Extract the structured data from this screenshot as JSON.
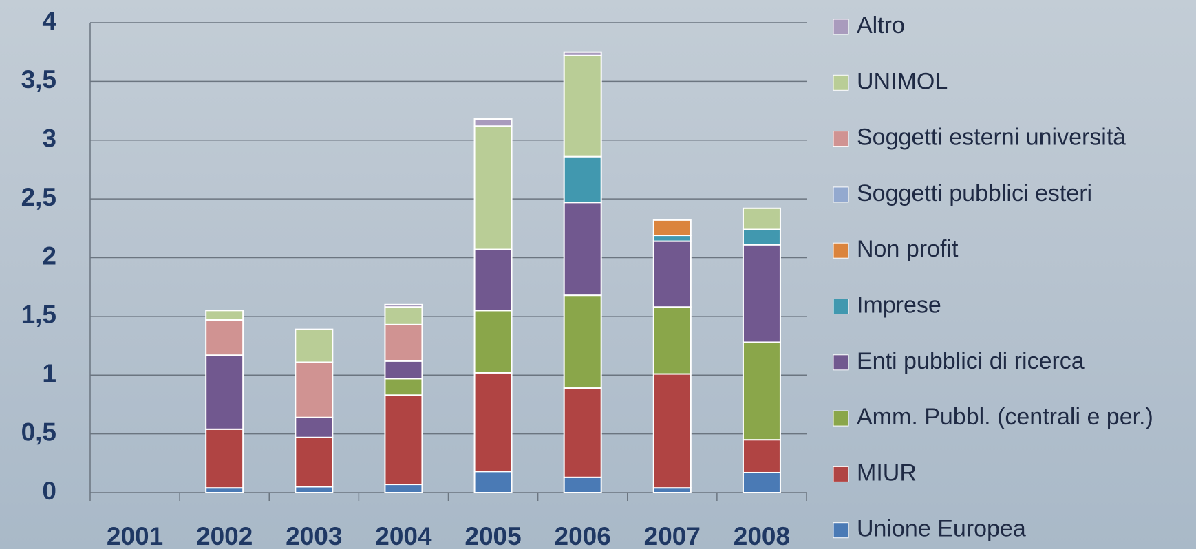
{
  "chart_data": {
    "type": "stacked_bar",
    "categories": [
      "2001",
      "2002",
      "2003",
      "2004",
      "2005",
      "2006",
      "2007",
      "2008"
    ],
    "series": [
      {
        "name": "Unione Europea",
        "color": "#4a7ab5",
        "values": [
          0,
          0.04,
          0.05,
          0.07,
          0.18,
          0.13,
          0.04,
          0.17
        ]
      },
      {
        "name": "MIUR",
        "color": "#b04443",
        "values": [
          0,
          0.5,
          0.42,
          0.76,
          0.84,
          0.76,
          0.97,
          0.28
        ]
      },
      {
        "name": "Amm. Pubbl. (centrali e per.)",
        "color": "#8aa64a",
        "values": [
          0,
          0,
          0,
          0.14,
          0.53,
          0.79,
          0.57,
          0.83
        ]
      },
      {
        "name": "Enti pubblici di ricerca",
        "color": "#71588f",
        "values": [
          0,
          0.63,
          0.17,
          0.15,
          0.52,
          0.79,
          0.56,
          0.83
        ]
      },
      {
        "name": "Imprese",
        "color": "#4198af",
        "values": [
          0,
          0,
          0,
          0,
          0,
          0.39,
          0.05,
          0.13
        ]
      },
      {
        "name": "Non profit",
        "color": "#db843d",
        "values": [
          0,
          0,
          0,
          0,
          0,
          0,
          0.13,
          0
        ]
      },
      {
        "name": "Soggetti pubblici esteri",
        "color": "#93a9cf",
        "values": [
          0,
          0,
          0,
          0,
          0,
          0,
          0,
          0
        ]
      },
      {
        "name": "Soggetti esterni università",
        "color": "#d09392",
        "values": [
          0,
          0.3,
          0.47,
          0.31,
          0,
          0,
          0,
          0
        ]
      },
      {
        "name": "UNIMOL",
        "color": "#b9cd96",
        "values": [
          0,
          0.08,
          0.28,
          0.15,
          1.05,
          0.86,
          0,
          0.18
        ]
      },
      {
        "name": "Altro",
        "color": "#a99bbd",
        "values": [
          0,
          0,
          0,
          0.02,
          0.06,
          0.03,
          0,
          0
        ]
      }
    ],
    "ylim": [
      0,
      4
    ],
    "yticks": [
      0,
      {
        "value": 0.5,
        "label": "0,5"
      },
      1,
      {
        "value": 1.5,
        "label": "1,5"
      },
      2,
      {
        "value": 2.5,
        "label": "2,5"
      },
      3,
      {
        "value": 3.5,
        "label": "3,5"
      },
      4
    ],
    "grid": true,
    "legend": "right"
  }
}
